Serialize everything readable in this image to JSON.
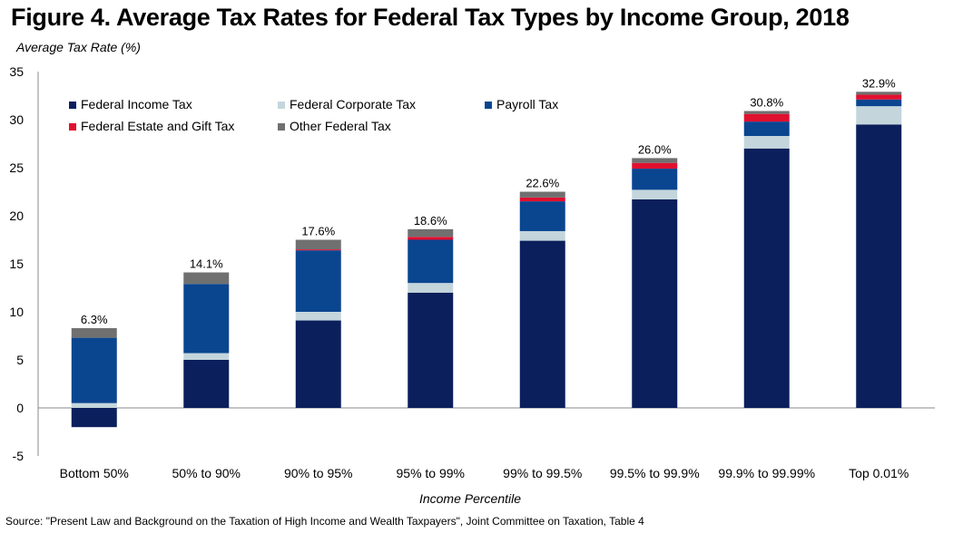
{
  "title": "Figure 4. Average Tax Rates for Federal Tax Types by Income Group, 2018",
  "source": "Source: \"Present Law and Background on the Taxation of High Income and Wealth Taxpayers\", Joint Committee on Taxation, Table 4",
  "colors": {
    "Federal Income Tax": "#0b1f5c",
    "Federal Corporate Tax": "#c4d6dc",
    "Payroll Tax": "#0a4590",
    "Federal Estate and Gift Tax": "#e0102f",
    "Other Federal Tax": "#707070"
  },
  "chart_data": {
    "type": "bar",
    "stacked": true,
    "xlabel": "Income Percentile",
    "ylabel": "Average Tax Rate (%)",
    "ylim": [
      -5,
      35
    ],
    "yticks": [
      -5,
      0,
      5,
      10,
      15,
      20,
      25,
      30,
      35
    ],
    "grid": false,
    "legend_position": "top-left",
    "categories": [
      "Bottom 50%",
      "50% to 90%",
      "90% to 95%",
      "95% to 99%",
      "99% to 99.5%",
      "99.5% to 99.9%",
      "99.9% to 99.99%",
      "Top 0.01%"
    ],
    "totals_labels": [
      "6.3%",
      "14.1%",
      "17.6%",
      "18.6%",
      "22.6%",
      "26.0%",
      "30.8%",
      "32.9%"
    ],
    "series": [
      {
        "name": "Federal Income Tax",
        "values": [
          -2.0,
          5.0,
          9.1,
          12.0,
          17.4,
          21.7,
          27.0,
          29.5
        ]
      },
      {
        "name": "Federal Corporate Tax",
        "values": [
          0.5,
          0.7,
          0.9,
          1.0,
          1.0,
          1.0,
          1.3,
          1.9
        ]
      },
      {
        "name": "Payroll Tax",
        "values": [
          6.8,
          7.2,
          6.4,
          4.5,
          3.1,
          2.2,
          1.5,
          0.7
        ]
      },
      {
        "name": "Federal Estate and Gift Tax",
        "values": [
          0.0,
          0.0,
          0.1,
          0.3,
          0.4,
          0.6,
          0.8,
          0.5
        ]
      },
      {
        "name": "Other Federal Tax",
        "values": [
          1.0,
          1.2,
          1.0,
          0.8,
          0.6,
          0.5,
          0.3,
          0.3
        ]
      }
    ]
  }
}
